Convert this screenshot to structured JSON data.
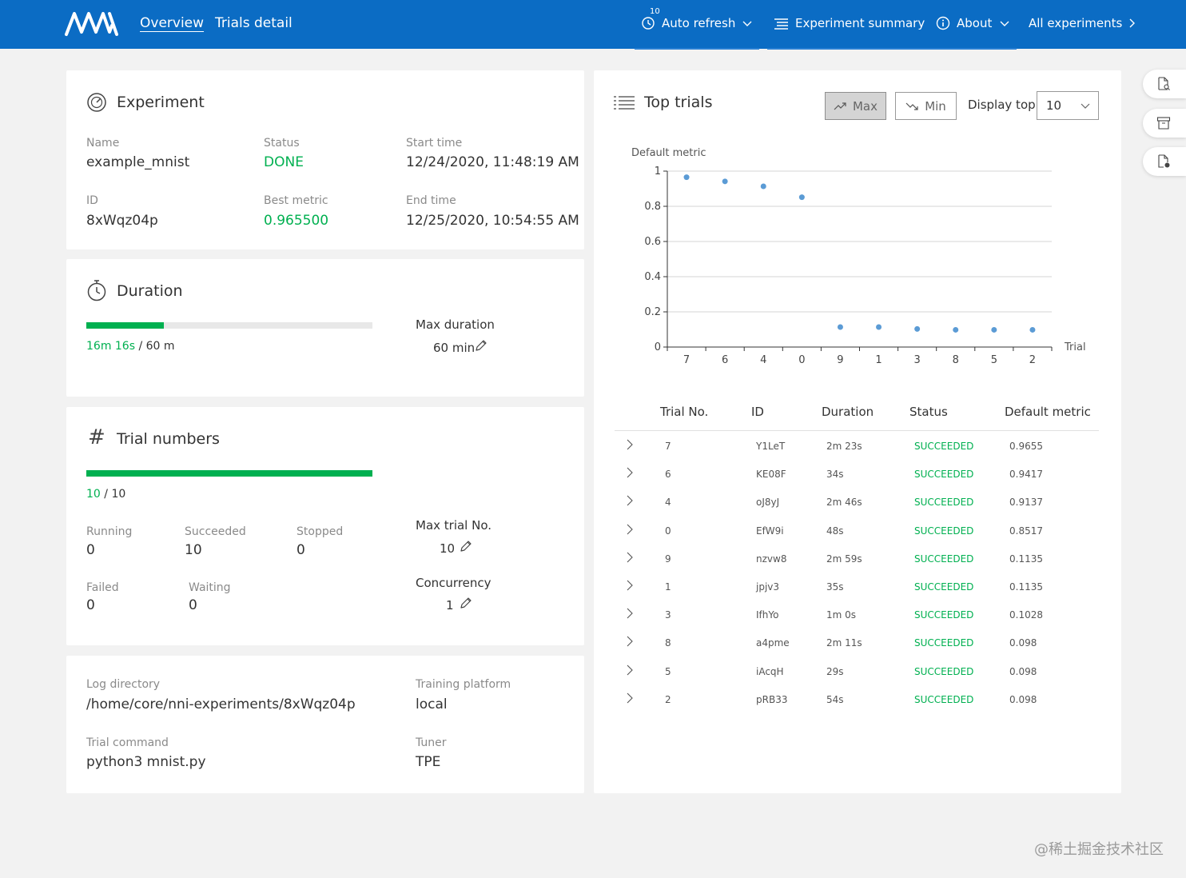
{
  "header": {
    "nav": {
      "overview": "Overview",
      "trials_detail": "Trials detail"
    },
    "auto_refresh": {
      "interval": "10",
      "label": "Auto refresh"
    },
    "experiment_summary": "Experiment summary",
    "about": "About",
    "all_experiments": "All experiments"
  },
  "experiment": {
    "title": "Experiment",
    "name_label": "Name",
    "name": "example_mnist",
    "status_label": "Status",
    "status": "DONE",
    "start_label": "Start time",
    "start": "12/24/2020, 11:48:19 AM",
    "id_label": "ID",
    "id": "8xWqz04p",
    "best_label": "Best metric",
    "best": "0.965500",
    "end_label": "End time",
    "end": "12/25/2020, 10:54:55 AM"
  },
  "duration": {
    "title": "Duration",
    "elapsed": "16m 16s",
    "total": "/ 60 m",
    "progress": 0.271,
    "max_label": "Max duration",
    "max_value": "60 min"
  },
  "trial_numbers": {
    "title": "Trial numbers",
    "done": "10",
    "total": "/ 10",
    "progress": 1.0,
    "running_label": "Running",
    "running": "0",
    "succeeded_label": "Succeeded",
    "succeeded": "10",
    "stopped_label": "Stopped",
    "stopped": "0",
    "failed_label": "Failed",
    "failed": "0",
    "waiting_label": "Waiting",
    "waiting": "0",
    "max_trial_label": "Max trial No.",
    "max_trial": "10",
    "concurrency_label": "Concurrency",
    "concurrency": "1"
  },
  "info": {
    "log_label": "Log directory",
    "log": "/home/core/nni-experiments/8xWqz04p",
    "platform_label": "Training platform",
    "platform": "local",
    "command_label": "Trial command",
    "command": "python3 mnist.py",
    "tuner_label": "Tuner",
    "tuner": "TPE"
  },
  "top_trials": {
    "title": "Top trials",
    "max_label": "Max",
    "min_label": "Min",
    "display_label": "Display top",
    "display_value": "10",
    "columns": [
      "Trial No.",
      "ID",
      "Duration",
      "Status",
      "Default metric"
    ],
    "rows": [
      {
        "no": "7",
        "id": "Y1LeT",
        "duration": "2m 23s",
        "status": "SUCCEEDED",
        "metric": "0.9655"
      },
      {
        "no": "6",
        "id": "KE08F",
        "duration": "34s",
        "status": "SUCCEEDED",
        "metric": "0.9417"
      },
      {
        "no": "4",
        "id": "oJ8yJ",
        "duration": "2m 46s",
        "status": "SUCCEEDED",
        "metric": "0.9137"
      },
      {
        "no": "0",
        "id": "EfW9i",
        "duration": "48s",
        "status": "SUCCEEDED",
        "metric": "0.8517"
      },
      {
        "no": "9",
        "id": "nzvw8",
        "duration": "2m 59s",
        "status": "SUCCEEDED",
        "metric": "0.1135"
      },
      {
        "no": "1",
        "id": "jpjv3",
        "duration": "35s",
        "status": "SUCCEEDED",
        "metric": "0.1135"
      },
      {
        "no": "3",
        "id": "IfhYo",
        "duration": "1m 0s",
        "status": "SUCCEEDED",
        "metric": "0.1028"
      },
      {
        "no": "8",
        "id": "a4pme",
        "duration": "2m 11s",
        "status": "SUCCEEDED",
        "metric": "0.098"
      },
      {
        "no": "5",
        "id": "iAcqH",
        "duration": "29s",
        "status": "SUCCEEDED",
        "metric": "0.098"
      },
      {
        "no": "2",
        "id": "pRB33",
        "duration": "54s",
        "status": "SUCCEEDED",
        "metric": "0.098"
      }
    ]
  },
  "chart_data": {
    "type": "scatter",
    "title": "",
    "ylabel": "Default metric",
    "xlabel": "Trial",
    "categories": [
      "7",
      "6",
      "4",
      "0",
      "9",
      "1",
      "3",
      "8",
      "5",
      "2"
    ],
    "values": [
      0.9655,
      0.9417,
      0.9137,
      0.8517,
      0.1135,
      0.1135,
      0.1028,
      0.098,
      0.098,
      0.098
    ],
    "ylim": [
      0,
      1
    ],
    "yticks": [
      "0",
      "0.2",
      "0.4",
      "0.6",
      "0.8",
      "1"
    ],
    "grid": true,
    "point_color": "#5b9bd5"
  },
  "colors": {
    "brand": "#0b6cc4",
    "success": "#00b050"
  },
  "watermark": "@稀土掘金技术社区"
}
